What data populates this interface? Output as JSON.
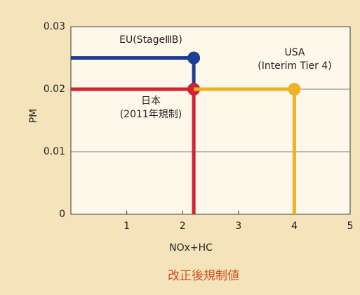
{
  "chart_data": {
    "type": "line",
    "title": "改正後規制値",
    "x_label": "NOx+HC",
    "y_label": "PM",
    "xlim": [
      0,
      5
    ],
    "ylim": [
      0,
      0.03
    ],
    "xticks": [
      1,
      2,
      3,
      4,
      5
    ],
    "yticks": [
      0,
      0.01,
      0.02,
      0.03
    ],
    "grid": true,
    "series": [
      {
        "name": "EU(StageⅢB)",
        "color": "#1f3d96",
        "x": [
          0,
          2.2,
          2.2
        ],
        "values": [
          0.025,
          0.025,
          0.02
        ]
      },
      {
        "name": "日本",
        "note": "(2011年規制)",
        "color": "#d3222f",
        "x": [
          0,
          2.2,
          2.2
        ],
        "values": [
          0.02,
          0.02,
          0
        ]
      },
      {
        "name": "USA",
        "note": "(Interim Tier 4)",
        "color": "#f0b225",
        "x": [
          2.2,
          4,
          4
        ],
        "values": [
          0.02,
          0.02,
          0
        ]
      }
    ]
  }
}
